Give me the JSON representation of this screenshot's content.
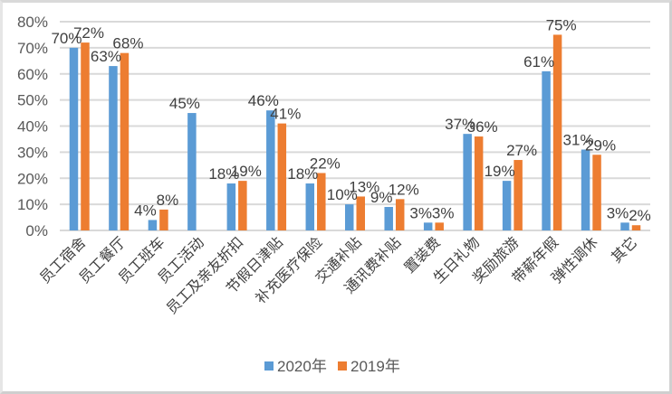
{
  "chart_data": {
    "type": "bar",
    "title": "",
    "xlabel": "",
    "ylabel": "",
    "ylim": [
      0,
      80
    ],
    "yticks": [
      "0%",
      "10%",
      "20%",
      "30%",
      "40%",
      "50%",
      "60%",
      "70%",
      "80%"
    ],
    "grid": true,
    "legend_position": "bottom",
    "categories": [
      "员工宿舍",
      "员工餐厅",
      "员工班车",
      "员工活动",
      "员工及亲友折扣",
      "节假日津贴",
      "补充医疗保险",
      "交通补贴",
      "通讯费补贴",
      "置装费",
      "生日礼物",
      "奖励旅游",
      "带薪年假",
      "弹性调休",
      "其它"
    ],
    "series": [
      {
        "name": "2020年",
        "color": "#5b9bd5",
        "values": [
          70,
          63,
          4,
          45,
          18,
          46,
          18,
          10,
          9,
          3,
          37,
          19,
          61,
          31,
          3
        ],
        "labels": [
          "70%",
          "63%",
          "4%",
          "45%",
          "18%",
          "46%",
          "18%",
          "10%",
          "9%",
          "3%",
          "37%",
          "19%",
          "61%",
          "31%",
          "3%"
        ]
      },
      {
        "name": "2019年",
        "color": "#ed7d31",
        "values": [
          72,
          68,
          8,
          null,
          19,
          41,
          22,
          13,
          12,
          3,
          36,
          27,
          75,
          29,
          2
        ],
        "labels": [
          "72%",
          "68%",
          "8%",
          null,
          "19%",
          "41%",
          "22%",
          "13%",
          "12%",
          "3%",
          "36%",
          "27%",
          "75%",
          "29%",
          "2%"
        ]
      }
    ]
  }
}
